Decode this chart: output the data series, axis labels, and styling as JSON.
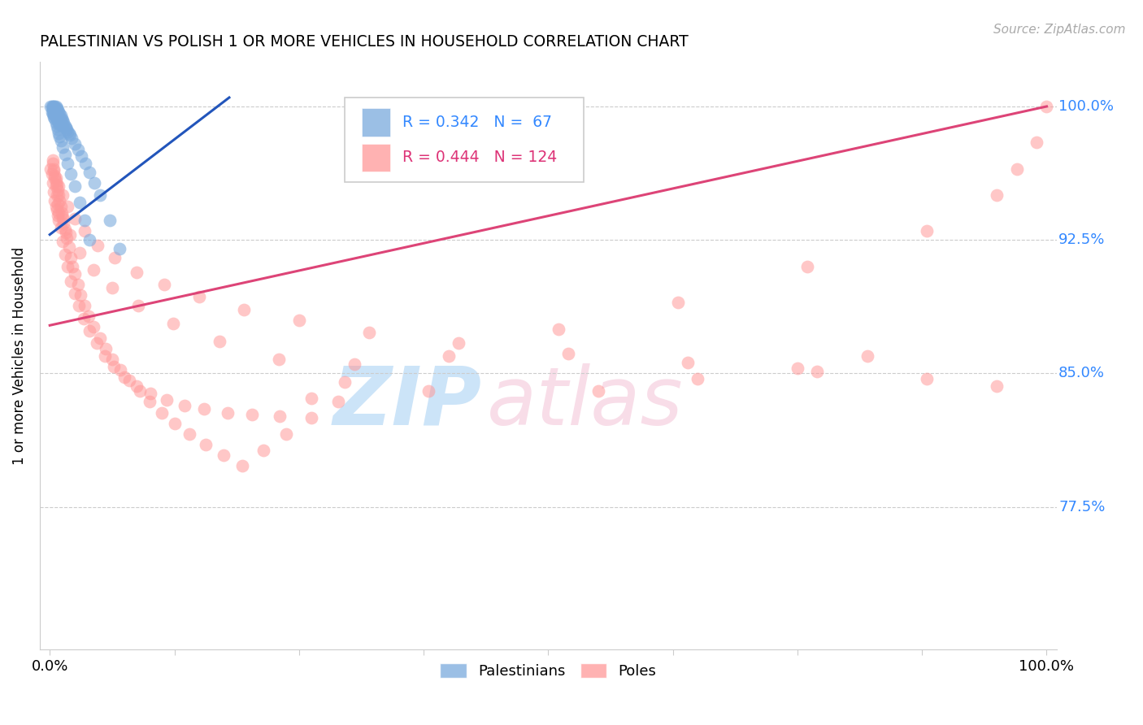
{
  "title": "PALESTINIAN VS POLISH 1 OR MORE VEHICLES IN HOUSEHOLD CORRELATION CHART",
  "source": "Source: ZipAtlas.com",
  "ylabel": "1 or more Vehicles in Household",
  "ylim": [
    0.695,
    1.025
  ],
  "xlim": [
    -0.01,
    1.01
  ],
  "yticks": [
    0.775,
    0.85,
    0.925,
    1.0
  ],
  "ytick_labels": [
    "77.5%",
    "85.0%",
    "92.5%",
    "100.0%"
  ],
  "palestinian_R": 0.342,
  "palestinian_N": 67,
  "polish_R": 0.444,
  "polish_N": 124,
  "palestinian_color": "#7aaadd",
  "polish_color": "#ff9999",
  "trend_blue": "#2255bb",
  "trend_pink": "#dd4477",
  "pal_x": [
    0.001,
    0.002,
    0.002,
    0.003,
    0.003,
    0.003,
    0.004,
    0.004,
    0.004,
    0.005,
    0.005,
    0.005,
    0.006,
    0.006,
    0.006,
    0.007,
    0.007,
    0.007,
    0.008,
    0.008,
    0.008,
    0.009,
    0.009,
    0.009,
    0.01,
    0.01,
    0.01,
    0.011,
    0.011,
    0.012,
    0.012,
    0.013,
    0.013,
    0.014,
    0.015,
    0.016,
    0.017,
    0.018,
    0.019,
    0.02,
    0.022,
    0.025,
    0.028,
    0.032,
    0.036,
    0.04,
    0.045,
    0.05,
    0.06,
    0.07,
    0.003,
    0.004,
    0.005,
    0.006,
    0.007,
    0.008,
    0.009,
    0.01,
    0.011,
    0.013,
    0.015,
    0.018,
    0.021,
    0.025,
    0.03,
    0.035,
    0.04
  ],
  "pal_y": [
    1.0,
    1.0,
    0.997,
    1.0,
    0.998,
    0.996,
    1.0,
    0.997,
    0.994,
    1.0,
    0.998,
    0.995,
    1.0,
    0.997,
    0.994,
    0.999,
    0.996,
    0.993,
    0.998,
    0.995,
    0.992,
    0.997,
    0.994,
    0.991,
    0.996,
    0.993,
    0.99,
    0.995,
    0.992,
    0.993,
    0.99,
    0.992,
    0.989,
    0.991,
    0.989,
    0.988,
    0.987,
    0.986,
    0.985,
    0.984,
    0.982,
    0.979,
    0.976,
    0.972,
    0.968,
    0.963,
    0.957,
    0.95,
    0.936,
    0.92,
    0.999,
    0.996,
    0.993,
    0.991,
    0.989,
    0.987,
    0.985,
    0.983,
    0.981,
    0.977,
    0.973,
    0.968,
    0.962,
    0.955,
    0.946,
    0.936,
    0.925
  ],
  "pol_x": [
    0.001,
    0.002,
    0.003,
    0.003,
    0.004,
    0.004,
    0.005,
    0.005,
    0.006,
    0.006,
    0.007,
    0.007,
    0.008,
    0.008,
    0.009,
    0.009,
    0.01,
    0.011,
    0.012,
    0.013,
    0.014,
    0.015,
    0.016,
    0.017,
    0.019,
    0.021,
    0.023,
    0.025,
    0.028,
    0.031,
    0.035,
    0.039,
    0.044,
    0.05,
    0.056,
    0.063,
    0.071,
    0.08,
    0.09,
    0.1,
    0.112,
    0.125,
    0.14,
    0.156,
    0.174,
    0.193,
    0.214,
    0.237,
    0.262,
    0.289,
    0.003,
    0.004,
    0.005,
    0.006,
    0.007,
    0.008,
    0.009,
    0.011,
    0.013,
    0.015,
    0.018,
    0.021,
    0.025,
    0.029,
    0.034,
    0.04,
    0.047,
    0.055,
    0.064,
    0.075,
    0.087,
    0.101,
    0.117,
    0.135,
    0.155,
    0.178,
    0.203,
    0.231,
    0.262,
    0.296,
    0.013,
    0.02,
    0.03,
    0.044,
    0.063,
    0.089,
    0.124,
    0.17,
    0.23,
    0.306,
    0.4,
    0.51,
    0.63,
    0.76,
    0.88,
    0.95,
    0.97,
    0.99,
    1.0,
    0.38,
    0.006,
    0.009,
    0.013,
    0.018,
    0.025,
    0.035,
    0.048,
    0.065,
    0.087,
    0.115,
    0.15,
    0.195,
    0.25,
    0.32,
    0.41,
    0.52,
    0.64,
    0.77,
    0.88,
    0.95,
    0.55,
    0.65,
    0.75,
    0.82
  ],
  "pol_y": [
    0.965,
    0.962,
    0.968,
    0.957,
    0.964,
    0.952,
    0.961,
    0.947,
    0.958,
    0.944,
    0.956,
    0.942,
    0.953,
    0.939,
    0.95,
    0.936,
    0.947,
    0.944,
    0.94,
    0.937,
    0.934,
    0.931,
    0.929,
    0.926,
    0.921,
    0.915,
    0.91,
    0.906,
    0.9,
    0.894,
    0.888,
    0.882,
    0.876,
    0.87,
    0.864,
    0.858,
    0.852,
    0.846,
    0.84,
    0.834,
    0.828,
    0.822,
    0.816,
    0.81,
    0.804,
    0.798,
    0.807,
    0.816,
    0.825,
    0.834,
    0.97,
    0.965,
    0.96,
    0.955,
    0.95,
    0.945,
    0.94,
    0.932,
    0.924,
    0.917,
    0.91,
    0.902,
    0.895,
    0.888,
    0.881,
    0.874,
    0.867,
    0.86,
    0.854,
    0.848,
    0.843,
    0.839,
    0.835,
    0.832,
    0.83,
    0.828,
    0.827,
    0.826,
    0.836,
    0.845,
    0.938,
    0.928,
    0.918,
    0.908,
    0.898,
    0.888,
    0.878,
    0.868,
    0.858,
    0.855,
    0.86,
    0.875,
    0.89,
    0.91,
    0.93,
    0.95,
    0.965,
    0.98,
    1.0,
    0.84,
    0.96,
    0.955,
    0.95,
    0.944,
    0.937,
    0.93,
    0.922,
    0.915,
    0.907,
    0.9,
    0.893,
    0.886,
    0.88,
    0.873,
    0.867,
    0.861,
    0.856,
    0.851,
    0.847,
    0.843,
    0.84,
    0.847,
    0.853,
    0.86
  ],
  "pal_trend_x": [
    0.0,
    0.18
  ],
  "pal_trend_y": [
    0.928,
    1.005
  ],
  "pol_trend_x": [
    0.0,
    1.0
  ],
  "pol_trend_y": [
    0.877,
    1.0
  ]
}
